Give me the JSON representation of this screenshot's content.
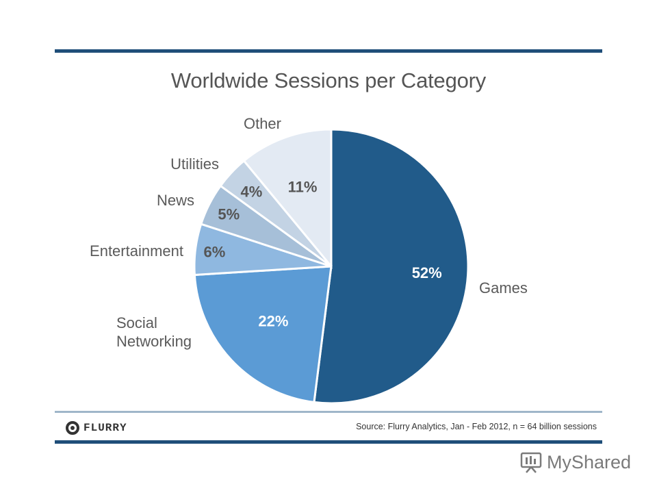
{
  "title": "Worldwide Sessions per Category",
  "chart_data": {
    "type": "pie",
    "title": "Worldwide Sessions per Category",
    "slices": [
      {
        "label": "Games",
        "value": 52,
        "value_label": "52%",
        "color": "#215b8a"
      },
      {
        "label": "Social Networking",
        "value": 22,
        "value_label": "22%",
        "color": "#5b9bd5"
      },
      {
        "label": "Entertainment",
        "value": 6,
        "value_label": "6%",
        "color": "#8fb8e0"
      },
      {
        "label": "News",
        "value": 5,
        "value_label": "5%",
        "color": "#a6bfd8"
      },
      {
        "label": "Utilities",
        "value": 4,
        "value_label": "4%",
        "color": "#c3d3e4"
      },
      {
        "label": "Other",
        "value": 11,
        "value_label": "11%",
        "color": "#e3eaf3"
      }
    ]
  },
  "footer": {
    "logo_text": "FLURRY",
    "source": "Source: Flurry Analytics, Jan - Feb 2012, n = 64 billion sessions"
  },
  "watermark": {
    "text": "MyShared"
  }
}
